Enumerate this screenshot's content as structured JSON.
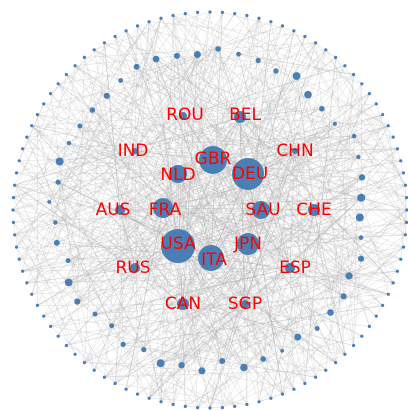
{
  "nodes": [
    {
      "label": "ROU"
    },
    {
      "label": "BEL"
    },
    {
      "label": "IND"
    },
    {
      "label": "CHN"
    },
    {
      "label": "GBR"
    },
    {
      "label": "NLD"
    },
    {
      "label": "DEU"
    },
    {
      "label": "AUS"
    },
    {
      "label": "FRA"
    },
    {
      "label": "SAU"
    },
    {
      "label": "CHE"
    },
    {
      "label": "USA"
    },
    {
      "label": "JPN"
    },
    {
      "label": "RUS"
    },
    {
      "label": "ITA"
    },
    {
      "label": "ESP"
    },
    {
      "label": "CAN"
    },
    {
      "label": "SGP"
    }
  ]
}
